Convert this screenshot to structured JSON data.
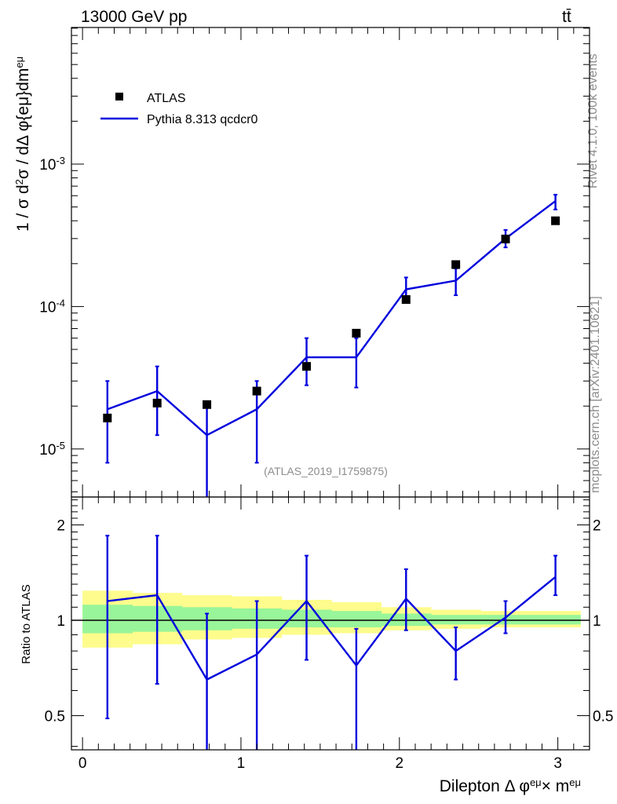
{
  "header": {
    "energy_label": "13000 GeV pp",
    "process_label": "tt̄"
  },
  "side_labels": {
    "rivet": "Rivet 4.1.0,  100k events",
    "mcplots": "mcplots.cern.ch [arXiv:2401.10621]"
  },
  "watermark": "(ATLAS_2019_I1759875)",
  "legend": {
    "data_label": "ATLAS",
    "mc_label": "Pythia 8.313 qcdcr0"
  },
  "axes": {
    "main_ylabel": "1 / σ  d²σ / dΔ φ{eμ}dm^eμ",
    "ratio_ylabel": "Ratio to ATLAS",
    "xlabel": "Dilepton Δ φ^eμ × m^eμ"
  },
  "colors": {
    "mc": "#0000dd",
    "data": "#000000",
    "band_inner": "#99f599",
    "band_outer": "#fdfc8c",
    "grey_text": "#8c8c8c"
  },
  "chart_data": [
    {
      "type": "scatter+line",
      "panel": "main",
      "yscale": "log",
      "ylim": [
        4.6e-06,
        0.0091
      ],
      "xlim": [
        -0.07,
        3.2
      ],
      "x": [
        0.157,
        0.471,
        0.785,
        1.1,
        1.414,
        1.728,
        2.042,
        2.356,
        2.67,
        2.985
      ],
      "xerr": 0.157,
      "ytick_labels": [
        "10^-5",
        "10^-4",
        "10^-3"
      ],
      "series": [
        {
          "name": "ATLAS",
          "values": [
            1.65e-05,
            2.1e-05,
            2.05e-05,
            2.55e-05,
            3.8e-05,
            6.5e-05,
            0.000112,
            0.000197,
            0.000298,
            0.0004
          ]
        },
        {
          "name": "Pythia 8.313 qcdcr0",
          "values": [
            1.9e-05,
            2.55e-05,
            1.25e-05,
            1.9e-05,
            4.4e-05,
            4.4e-05,
            0.000132,
            0.000152,
            0.0003,
            0.00055
          ],
          "err_low": [
            8e-06,
            1.25e-05,
            4e-06,
            8e-06,
            2.8e-05,
            2.7e-05,
            0.000108,
            0.00012,
            0.00026,
            0.00048
          ],
          "err_high": [
            3e-05,
            3.8e-05,
            2e-05,
            3e-05,
            6e-05,
            6e-05,
            0.00016,
            0.000185,
            0.000345,
            0.00061
          ]
        }
      ]
    },
    {
      "type": "line",
      "panel": "ratio",
      "yscale": "log",
      "ylim": [
        0.39,
        2.45
      ],
      "xlim": [
        -0.07,
        3.2
      ],
      "xlabel": "Dilepton Δ φ^eμ × m^eμ",
      "ylabel": "Ratio to ATLAS",
      "ytick_labels": [
        "0.5",
        "1",
        "2"
      ],
      "xtick_labels": [
        "0",
        "1",
        "2",
        "3"
      ],
      "series": [
        {
          "name": "Pythia 8.313 qcdcr0 / ATLAS",
          "values": [
            1.15,
            1.2,
            0.65,
            0.78,
            1.15,
            0.72,
            1.17,
            0.8,
            1.02,
            1.37
          ],
          "err_low": [
            0.49,
            0.63,
            0.35,
            0.35,
            0.75,
            0.37,
            0.93,
            0.65,
            0.91,
            1.2
          ],
          "err_high": [
            1.85,
            1.85,
            1.05,
            1.15,
            1.6,
            0.94,
            1.45,
            0.95,
            1.15,
            1.6
          ]
        }
      ],
      "bands": [
        {
          "name": "ATLAS total uncertainty",
          "lo": [
            0.82,
            0.84,
            0.87,
            0.88,
            0.9,
            0.91,
            0.93,
            0.94,
            0.95,
            0.95
          ],
          "hi": [
            1.24,
            1.22,
            1.2,
            1.19,
            1.16,
            1.14,
            1.1,
            1.08,
            1.07,
            1.07
          ]
        },
        {
          "name": "ATLAS stat uncertainty",
          "lo": [
            0.91,
            0.92,
            0.93,
            0.94,
            0.95,
            0.95,
            0.96,
            0.97,
            0.97,
            0.97
          ],
          "hi": [
            1.12,
            1.11,
            1.1,
            1.09,
            1.08,
            1.07,
            1.05,
            1.04,
            1.04,
            1.04
          ]
        }
      ]
    }
  ]
}
